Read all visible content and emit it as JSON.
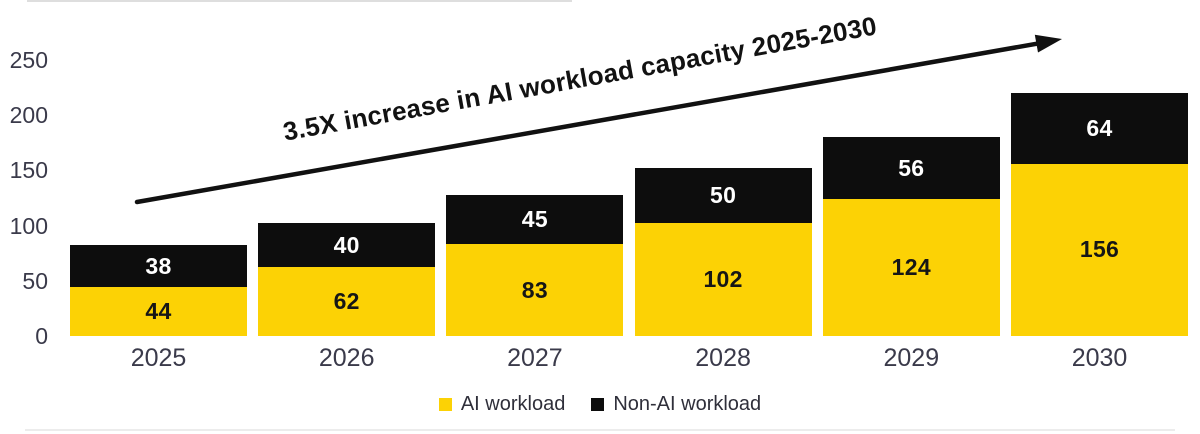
{
  "chart_data": {
    "type": "bar",
    "stacked": true,
    "title": "",
    "xlabel": "",
    "ylabel": "",
    "categories": [
      "2025",
      "2026",
      "2027",
      "2028",
      "2029",
      "2030"
    ],
    "series": [
      {
        "name": "AI workload",
        "values": [
          44,
          62,
          83,
          102,
          124,
          156
        ],
        "color": "#FCD205",
        "label_color": "#161616"
      },
      {
        "name": "Non-AI workload",
        "values": [
          38,
          40,
          45,
          50,
          56,
          64
        ],
        "color": "#0D0D0D",
        "label_color": "#FFFFFF"
      }
    ],
    "totals": [
      82,
      102,
      128,
      152,
      180,
      220
    ],
    "yticks": [
      0,
      50,
      100,
      150,
      200,
      250
    ],
    "ylim": [
      0,
      250
    ],
    "grid": false,
    "legend_position": "bottom-center",
    "annotation": {
      "text": "3.5X increase in AI workload capacity 2025-2030",
      "arrow": true
    }
  },
  "colors": {
    "ai_workload": "#FCD205",
    "non_ai_workload": "#0D0D0D",
    "axis_text": "#3A3A4A",
    "annotation_text": "#121212",
    "arrow": "#111111",
    "background": "#FFFFFF"
  }
}
